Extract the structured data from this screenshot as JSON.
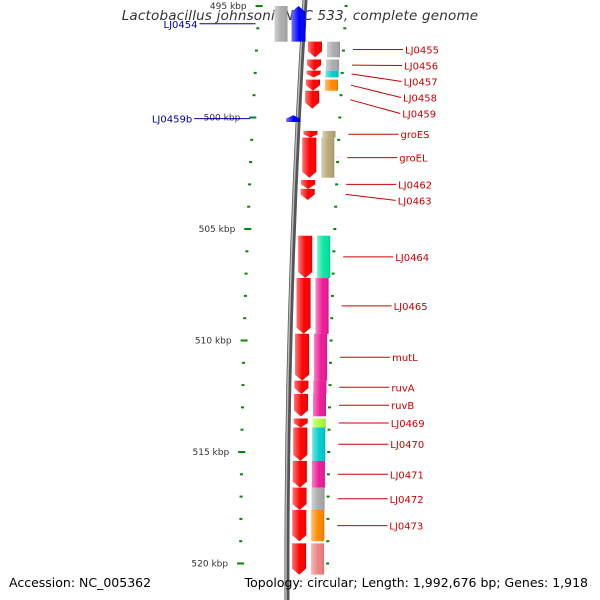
{
  "title": "Lactobacillus johnsonii NCC 533, complete genome",
  "footer": {
    "accession": "Accession: NC_005362",
    "topology": "Topology: circular; Length: 1,992,676 bp; Genes: 1,918"
  },
  "colors": {
    "forward_strand": "#ff0000",
    "reverse_strand": "#0000ff",
    "backbone": "#888888",
    "tick": "#008800",
    "forward_label": "#cc0000",
    "reverse_label": "#0000aa"
  },
  "ruler": [
    {
      "label": "495 kbp",
      "kbp": 495
    },
    {
      "label": "500 kbp",
      "kbp": 500
    },
    {
      "label": "505 kbp",
      "kbp": 505
    },
    {
      "label": "510 kbp",
      "kbp": 510
    },
    {
      "label": "515 kbp",
      "kbp": 515
    },
    {
      "label": "520 kbp",
      "kbp": 520
    }
  ],
  "genes": [
    {
      "label": "LJ0454",
      "strand": "reverse",
      "start_kbp": 495.0,
      "end_kbp": 496.6,
      "cog_color": "#aaaaaa"
    },
    {
      "label": "LJ0455",
      "strand": "forward",
      "start_kbp": 496.6,
      "end_kbp": 497.3,
      "cog_color": "#aaaaaa"
    },
    {
      "label": "LJ0456",
      "strand": "forward",
      "start_kbp": 497.4,
      "end_kbp": 497.9,
      "cog_color": "#aaaaaa"
    },
    {
      "label": "LJ0457",
      "strand": "forward",
      "start_kbp": 497.9,
      "end_kbp": 498.2,
      "cog_color": "#00cccc"
    },
    {
      "label": "LJ0458",
      "strand": "forward",
      "start_kbp": 498.3,
      "end_kbp": 498.8,
      "cog_color": "#ff8800"
    },
    {
      "label": "LJ0459",
      "strand": "forward",
      "start_kbp": 498.8,
      "end_kbp": 499.6,
      "cog_color": "#ffffff"
    },
    {
      "label": "LJ0459b",
      "strand": "reverse",
      "start_kbp": 499.9,
      "end_kbp": 500.2,
      "cog_color": "#ffffff"
    },
    {
      "label": "groES",
      "strand": "forward",
      "start_kbp": 500.6,
      "end_kbp": 500.9,
      "cog_color": "#b8a878"
    },
    {
      "label": "groEL",
      "strand": "forward",
      "start_kbp": 500.9,
      "end_kbp": 502.7,
      "cog_color": "#b8a878"
    },
    {
      "label": "LJ0462",
      "strand": "forward",
      "start_kbp": 502.8,
      "end_kbp": 503.2,
      "cog_color": "#ffffff"
    },
    {
      "label": "LJ0463",
      "strand": "forward",
      "start_kbp": 503.2,
      "end_kbp": 503.7,
      "cog_color": "#ffffff"
    },
    {
      "label": "LJ0464",
      "strand": "forward",
      "start_kbp": 505.3,
      "end_kbp": 507.2,
      "cog_color": "#00e8a0"
    },
    {
      "label": "LJ0465",
      "strand": "forward",
      "start_kbp": 507.2,
      "end_kbp": 509.7,
      "cog_color": "#ee1a98"
    },
    {
      "label": "mutL",
      "strand": "forward",
      "start_kbp": 509.7,
      "end_kbp": 511.8,
      "cog_color": "#ee1a98"
    },
    {
      "label": "ruvA",
      "strand": "forward",
      "start_kbp": 511.8,
      "end_kbp": 512.4,
      "cog_color": "#ee1a98"
    },
    {
      "label": "ruvB",
      "strand": "forward",
      "start_kbp": 512.4,
      "end_kbp": 513.4,
      "cog_color": "#ee1a98"
    },
    {
      "label": "LJ0469",
      "strand": "forward",
      "start_kbp": 513.5,
      "end_kbp": 513.9,
      "cog_color": "#aaff33"
    },
    {
      "label": "LJ0470",
      "strand": "forward",
      "start_kbp": 513.9,
      "end_kbp": 515.4,
      "cog_color": "#00cccc"
    },
    {
      "label": "LJ0471",
      "strand": "forward",
      "start_kbp": 515.4,
      "end_kbp": 516.6,
      "cog_color": "#ee1a98"
    },
    {
      "label": "LJ0472",
      "strand": "forward",
      "start_kbp": 516.6,
      "end_kbp": 517.6,
      "cog_color": "#aaaaaa"
    },
    {
      "label": "LJ0473",
      "strand": "forward",
      "start_kbp": 517.6,
      "end_kbp": 519.0,
      "cog_color": "#ff8800"
    },
    {
      "label": "",
      "strand": "forward",
      "start_kbp": 519.1,
      "end_kbp": 520.5,
      "cog_color": "#f08080"
    }
  ]
}
